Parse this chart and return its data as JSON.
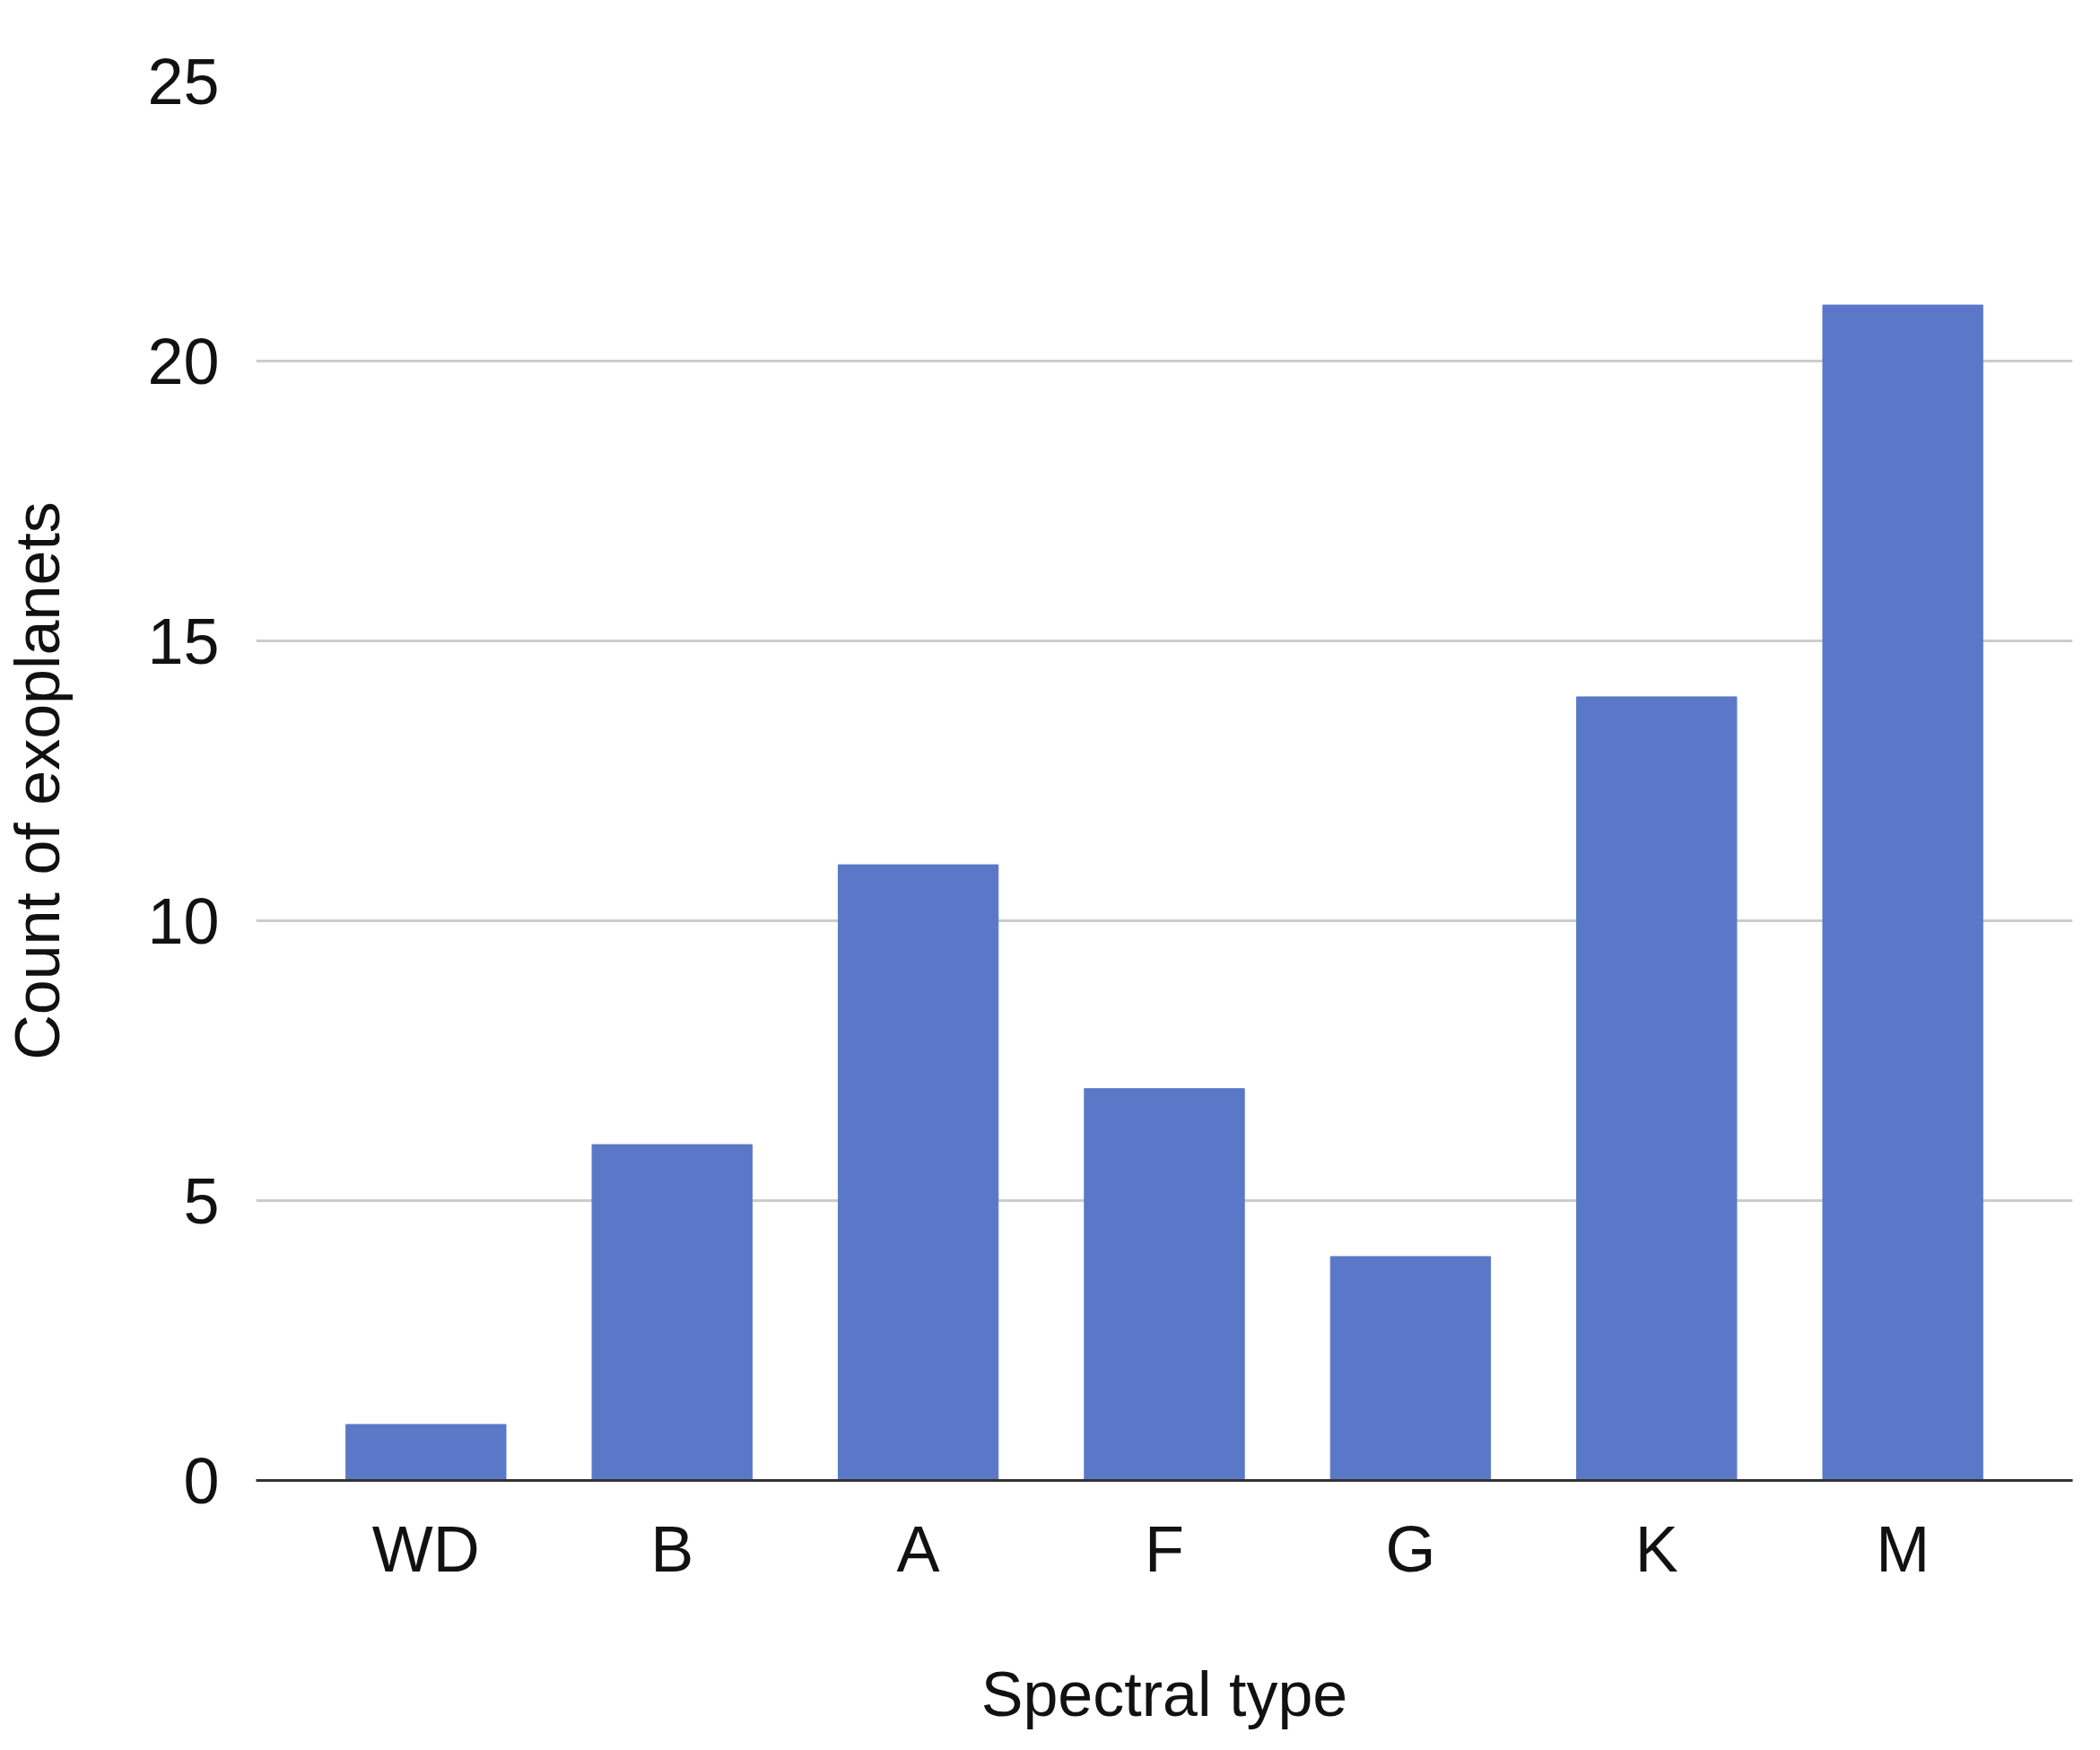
{
  "chart_data": {
    "type": "bar",
    "xlabel": "Spectral type",
    "ylabel": "Count of exoplanets",
    "categories": [
      "WD",
      "B",
      "A",
      "F",
      "G",
      "K",
      "M"
    ],
    "values": [
      1,
      6,
      11,
      7,
      4,
      14,
      21
    ],
    "color": "#5b78c8",
    "ylim": [
      0,
      25
    ],
    "yticks": [
      0,
      5,
      10,
      15,
      20,
      25
    ],
    "grid": "y"
  }
}
